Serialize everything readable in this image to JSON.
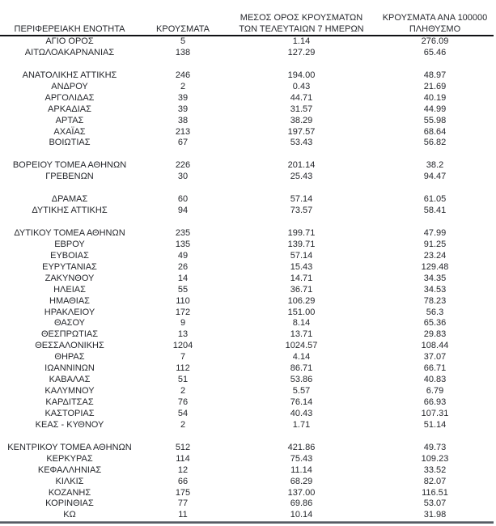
{
  "colors": {
    "text": "#25272c",
    "header_rule": "#101114",
    "bottom_rule": "#565b63",
    "background": "#ffffff"
  },
  "table": {
    "headers": {
      "col1_line1": "",
      "col1_line2": "ΠΕΡΙΦΕΡΕΙΑΚΗ ΕΝΟΤΗΤΑ",
      "col2_line1": "",
      "col2_line2": "ΚΡΟΥΣΜΑΤΑ",
      "col3_line1": "ΜΕΣΟΣ ΟΡΟΣ ΚΡΟΥΣΜΑΤΩΝ",
      "col3_line2": "ΤΩΝ ΤΕΛΕΥΤΑΙΩΝ 7 ΗΜΕΡΩΝ",
      "col4_line1": "ΚΡΟΥΣΜΑΤΑ ΑΝΑ 100000",
      "col4_line2": "ΠΛΗΘΥΣΜΟ"
    },
    "rows": [
      {
        "region": "ΑΓΙΟ ΟΡΟΣ",
        "cases": "5",
        "avg7": "1.14",
        "per100k": "276.09"
      },
      {
        "region": "ΑΙΤΩΛΟΑΚΑΡΝΑΝΙΑΣ",
        "cases": "138",
        "avg7": "127.29",
        "per100k": "65.46"
      },
      {
        "spacer": true
      },
      {
        "region": "ΑΝΑΤΟΛΙΚΗΣ ΑΤΤΙΚΗΣ",
        "cases": "246",
        "avg7": "194.00",
        "per100k": "48.97"
      },
      {
        "region": "ΑΝΔΡΟΥ",
        "cases": "2",
        "avg7": "0.43",
        "per100k": "21.69"
      },
      {
        "region": "ΑΡΓΟΛΙΔΑΣ",
        "cases": "39",
        "avg7": "44.71",
        "per100k": "40.19"
      },
      {
        "region": "ΑΡΚΑΔΙΑΣ",
        "cases": "39",
        "avg7": "31.57",
        "per100k": "44.99"
      },
      {
        "region": "ΑΡΤΑΣ",
        "cases": "38",
        "avg7": "38.29",
        "per100k": "55.98"
      },
      {
        "region": "ΑΧΑΪΑΣ",
        "cases": "213",
        "avg7": "197.57",
        "per100k": "68.64"
      },
      {
        "region": "ΒΟΙΩΤΙΑΣ",
        "cases": "67",
        "avg7": "53.43",
        "per100k": "56.82"
      },
      {
        "spacer": true
      },
      {
        "region": "ΒΟΡΕΙΟΥ ΤΟΜΕΑ ΑΘΗΝΩΝ",
        "cases": "226",
        "avg7": "201.14",
        "per100k": "38.2"
      },
      {
        "region": "ΓΡΕΒΕΝΩΝ",
        "cases": "30",
        "avg7": "25.43",
        "per100k": "94.47"
      },
      {
        "spacer": true
      },
      {
        "region": "ΔΡΑΜΑΣ",
        "cases": "60",
        "avg7": "57.14",
        "per100k": "61.05"
      },
      {
        "region": "ΔΥΤΙΚΗΣ ΑΤΤΙΚΗΣ",
        "cases": "94",
        "avg7": "73.57",
        "per100k": "58.41"
      },
      {
        "spacer": true
      },
      {
        "region": "ΔΥΤΙΚΟΥ ΤΟΜΕΑ ΑΘΗΝΩΝ",
        "cases": "235",
        "avg7": "199.71",
        "per100k": "47.99"
      },
      {
        "region": "ΕΒΡΟΥ",
        "cases": "135",
        "avg7": "139.71",
        "per100k": "91.25"
      },
      {
        "region": "ΕΥΒΟΙΑΣ",
        "cases": "49",
        "avg7": "57.14",
        "per100k": "23.24"
      },
      {
        "region": "ΕΥΡΥΤΑΝΙΑΣ",
        "cases": "26",
        "avg7": "15.43",
        "per100k": "129.48"
      },
      {
        "region": "ΖΑΚΥΝΘΟΥ",
        "cases": "14",
        "avg7": "14.71",
        "per100k": "34.35"
      },
      {
        "region": "ΗΛΕΙΑΣ",
        "cases": "55",
        "avg7": "36.71",
        "per100k": "34.53"
      },
      {
        "region": "ΗΜΑΘΙΑΣ",
        "cases": "110",
        "avg7": "106.29",
        "per100k": "78.23"
      },
      {
        "region": "ΗΡΑΚΛΕΙΟΥ",
        "cases": "172",
        "avg7": "151.00",
        "per100k": "56.3"
      },
      {
        "region": "ΘΑΣΟΥ",
        "cases": "9",
        "avg7": "8.14",
        "per100k": "65.36"
      },
      {
        "region": "ΘΕΣΠΡΩΤΙΑΣ",
        "cases": "13",
        "avg7": "13.71",
        "per100k": "29.83"
      },
      {
        "region": "ΘΕΣΣΑΛΟΝΙΚΗΣ",
        "cases": "1204",
        "avg7": "1024.57",
        "per100k": "108.44"
      },
      {
        "region": "ΘΗΡΑΣ",
        "cases": "7",
        "avg7": "4.14",
        "per100k": "37.07"
      },
      {
        "region": "ΙΩΑΝΝΙΝΩΝ",
        "cases": "112",
        "avg7": "86.71",
        "per100k": "66.71"
      },
      {
        "region": "ΚΑΒΑΛΑΣ",
        "cases": "51",
        "avg7": "53.86",
        "per100k": "40.83"
      },
      {
        "region": "ΚΑΛΥΜΝΟΥ",
        "cases": "2",
        "avg7": "5.57",
        "per100k": "6.79"
      },
      {
        "region": "ΚΑΡΔΙΤΣΑΣ",
        "cases": "76",
        "avg7": "76.14",
        "per100k": "66.93"
      },
      {
        "region": "ΚΑΣΤΟΡΙΑΣ",
        "cases": "54",
        "avg7": "40.43",
        "per100k": "107.31"
      },
      {
        "region": "ΚΕΑΣ - ΚΥΘΝΟΥ",
        "cases": "2",
        "avg7": "1.71",
        "per100k": "51.14"
      },
      {
        "spacer": true
      },
      {
        "region": "ΚΕΝΤΡΙΚΟΥ ΤΟΜΕΑ ΑΘΗΝΩΝ",
        "cases": "512",
        "avg7": "421.86",
        "per100k": "49.73"
      },
      {
        "region": "ΚΕΡΚΥΡΑΣ",
        "cases": "114",
        "avg7": "75.43",
        "per100k": "109.23"
      },
      {
        "region": "ΚΕΦΑΛΛΗΝΙΑΣ",
        "cases": "12",
        "avg7": "11.14",
        "per100k": "33.52"
      },
      {
        "region": "ΚΙΛΚΙΣ",
        "cases": "66",
        "avg7": "68.29",
        "per100k": "82.07"
      },
      {
        "region": "ΚΟΖΑΝΗΣ",
        "cases": "175",
        "avg7": "137.00",
        "per100k": "116.51"
      },
      {
        "region": "ΚΟΡΙΝΘΙΑΣ",
        "cases": "77",
        "avg7": "69.86",
        "per100k": "53.07"
      },
      {
        "region": "ΚΩ",
        "cases": "11",
        "avg7": "10.14",
        "per100k": "31.98"
      }
    ]
  }
}
